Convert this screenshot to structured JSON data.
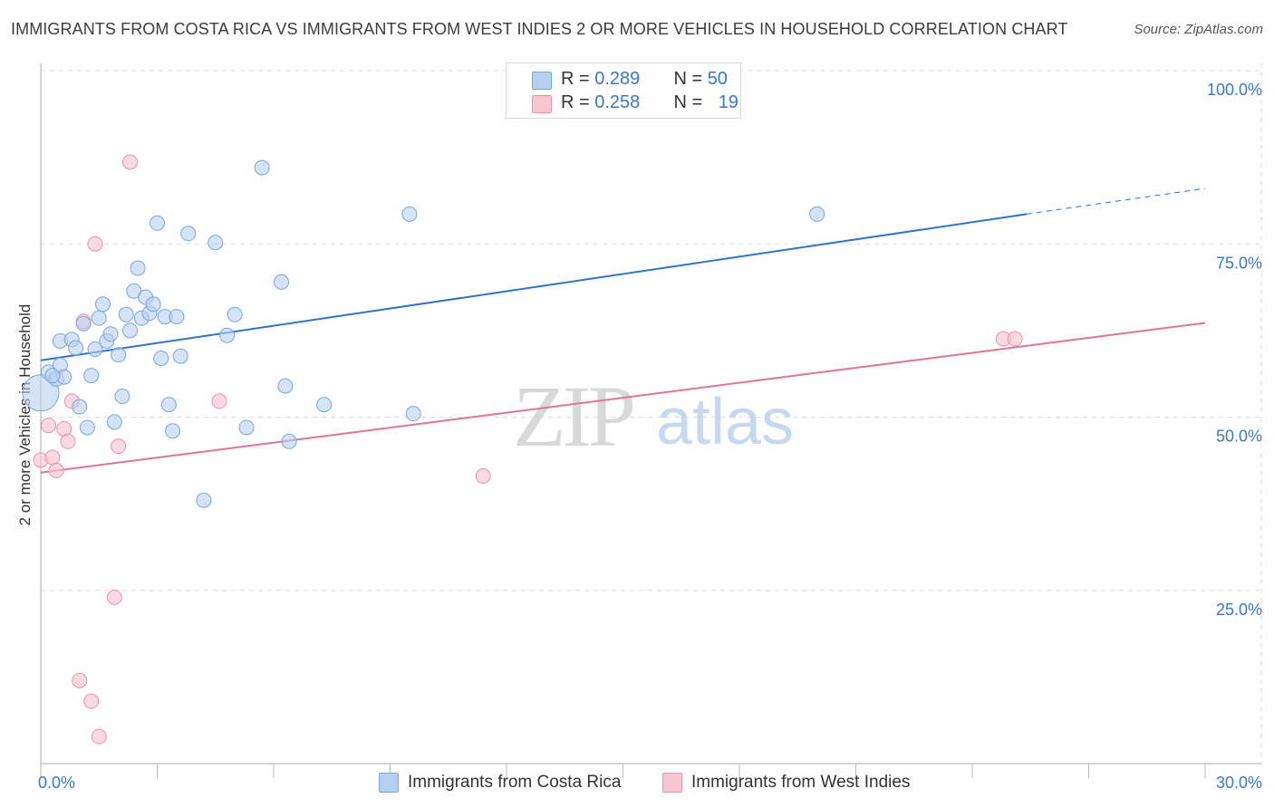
{
  "header": {
    "title": "IMMIGRANTS FROM COSTA RICA VS IMMIGRANTS FROM WEST INDIES 2 OR MORE VEHICLES IN HOUSEHOLD CORRELATION CHART",
    "source": "Source: ZipAtlas.com"
  },
  "watermark": {
    "zip": "ZIP",
    "atlas": "atlas"
  },
  "stats": [
    {
      "r_label": "R = ",
      "r_value": "0.289",
      "n_label": "N = ",
      "n_value": "50"
    },
    {
      "r_label": "R = ",
      "r_value": "0.258",
      "n_label": "N = ",
      "n_value": "19"
    }
  ],
  "colors": {
    "blue_fill": "#b8d0f0",
    "blue_stroke": "#7aa6dc",
    "blue_line": "#2f73cc",
    "pink_fill": "#f7c5d4",
    "pink_stroke": "#ea92ac",
    "pink_line": "#e0739a",
    "grid": "#dddddd",
    "tick_text": "#3a78c9"
  },
  "chart_data": {
    "type": "scatter",
    "title": "IMMIGRANTS FROM COSTA RICA VS IMMIGRANTS FROM WEST INDIES 2 OR MORE VEHICLES IN HOUSEHOLD CORRELATION CHART",
    "xlabel": "",
    "ylabel": "2 or more Vehicles in Household",
    "xlim": [
      0,
      30
    ],
    "ylim": [
      0,
      100
    ],
    "x_tick_labels": [
      {
        "value": 0,
        "label": "0.0%"
      },
      {
        "value": 30,
        "label": "30.0%"
      }
    ],
    "y_tick_labels": [
      {
        "value": 25,
        "label": "25.0%"
      },
      {
        "value": 50,
        "label": "50.0%"
      },
      {
        "value": 75,
        "label": "75.0%"
      },
      {
        "value": 100,
        "label": "100.0%"
      }
    ],
    "legend_position": "bottom",
    "series": [
      {
        "name": "Immigrants from Costa Rica",
        "color": "blue",
        "trend": {
          "x0": 0,
          "y0": 58.2,
          "x1": 25.4,
          "y1": 79.3,
          "dash_to_x": 30,
          "dash_to_y": 83.0
        },
        "points": [
          {
            "x": 0.0,
            "y": 53.5,
            "big": true
          },
          {
            "x": 0.2,
            "y": 56.5
          },
          {
            "x": 0.4,
            "y": 55.5
          },
          {
            "x": 0.5,
            "y": 57.5
          },
          {
            "x": 0.6,
            "y": 55.8
          },
          {
            "x": 0.5,
            "y": 61.0
          },
          {
            "x": 0.8,
            "y": 61.2
          },
          {
            "x": 0.9,
            "y": 60.0
          },
          {
            "x": 1.0,
            "y": 51.5
          },
          {
            "x": 1.1,
            "y": 63.5
          },
          {
            "x": 1.2,
            "y": 48.5
          },
          {
            "x": 1.3,
            "y": 56.0
          },
          {
            "x": 1.4,
            "y": 59.8
          },
          {
            "x": 1.5,
            "y": 64.3
          },
          {
            "x": 1.6,
            "y": 66.3
          },
          {
            "x": 1.7,
            "y": 61.0
          },
          {
            "x": 1.8,
            "y": 62.0
          },
          {
            "x": 1.9,
            "y": 49.3
          },
          {
            "x": 2.0,
            "y": 59.0
          },
          {
            "x": 2.1,
            "y": 53.0
          },
          {
            "x": 2.2,
            "y": 64.8
          },
          {
            "x": 2.3,
            "y": 62.5
          },
          {
            "x": 2.4,
            "y": 68.2
          },
          {
            "x": 2.5,
            "y": 71.5
          },
          {
            "x": 2.6,
            "y": 64.3
          },
          {
            "x": 2.7,
            "y": 67.3
          },
          {
            "x": 2.8,
            "y": 65.0
          },
          {
            "x": 2.9,
            "y": 66.3
          },
          {
            "x": 3.0,
            "y": 78.0
          },
          {
            "x": 3.1,
            "y": 58.5
          },
          {
            "x": 3.2,
            "y": 64.5
          },
          {
            "x": 3.3,
            "y": 51.8
          },
          {
            "x": 3.4,
            "y": 48.0
          },
          {
            "x": 3.5,
            "y": 64.5
          },
          {
            "x": 3.6,
            "y": 58.8
          },
          {
            "x": 3.8,
            "y": 76.5
          },
          {
            "x": 4.2,
            "y": 38.0
          },
          {
            "x": 4.5,
            "y": 75.2
          },
          {
            "x": 4.8,
            "y": 61.8
          },
          {
            "x": 5.0,
            "y": 64.8
          },
          {
            "x": 5.3,
            "y": 48.5
          },
          {
            "x": 5.7,
            "y": 86.0
          },
          {
            "x": 6.2,
            "y": 69.5
          },
          {
            "x": 6.3,
            "y": 54.5
          },
          {
            "x": 6.4,
            "y": 46.5
          },
          {
            "x": 7.3,
            "y": 51.8
          },
          {
            "x": 9.5,
            "y": 79.3
          },
          {
            "x": 9.6,
            "y": 50.5
          },
          {
            "x": 20.0,
            "y": 79.3
          },
          {
            "x": 0.3,
            "y": 56.0
          }
        ]
      },
      {
        "name": "Immigrants from West Indies",
        "color": "pink",
        "trend": {
          "x0": 0,
          "y0": 42.0,
          "x1": 30,
          "y1": 63.6
        },
        "points": [
          {
            "x": 0.0,
            "y": 43.8
          },
          {
            "x": 0.2,
            "y": 48.8
          },
          {
            "x": 0.3,
            "y": 44.2
          },
          {
            "x": 0.4,
            "y": 42.3
          },
          {
            "x": 0.6,
            "y": 48.3
          },
          {
            "x": 0.7,
            "y": 46.5
          },
          {
            "x": 0.8,
            "y": 52.3
          },
          {
            "x": 1.0,
            "y": 12.0
          },
          {
            "x": 1.1,
            "y": 63.8
          },
          {
            "x": 1.3,
            "y": 9.0
          },
          {
            "x": 1.4,
            "y": 75.0
          },
          {
            "x": 1.5,
            "y": 3.9
          },
          {
            "x": 1.9,
            "y": 24.0
          },
          {
            "x": 2.0,
            "y": 45.8
          },
          {
            "x": 2.3,
            "y": 86.8
          },
          {
            "x": 4.6,
            "y": 52.3
          },
          {
            "x": 11.4,
            "y": 41.5
          },
          {
            "x": 24.8,
            "y": 61.3
          },
          {
            "x": 25.1,
            "y": 61.3
          }
        ]
      }
    ]
  }
}
